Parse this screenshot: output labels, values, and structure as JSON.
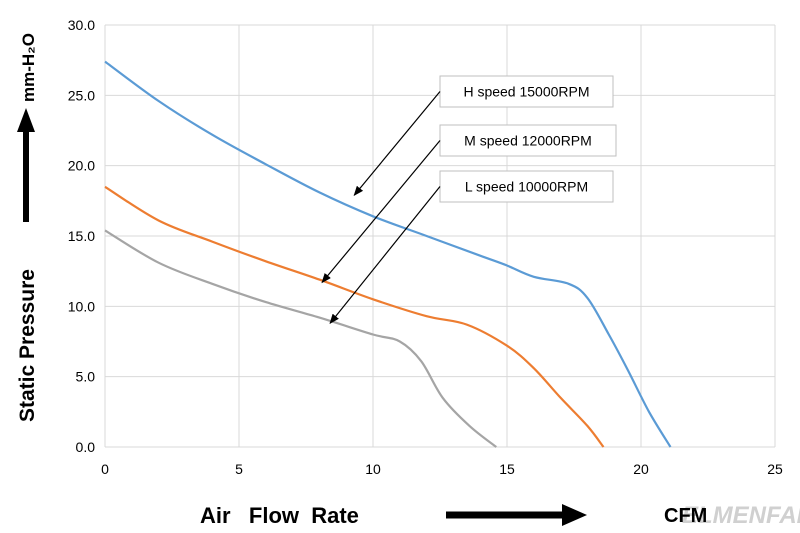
{
  "chart_data": {
    "type": "line",
    "xlabel": "Air   Flow  Rate",
    "xunit": "CFM",
    "ylabel": "Static   Pressure",
    "yunit": "mm-H₂O",
    "xlim": [
      0,
      25
    ],
    "ylim": [
      0,
      30
    ],
    "xticks": [
      0,
      5,
      10,
      15,
      20,
      25
    ],
    "yticks": [
      0.0,
      5.0,
      10.0,
      15.0,
      20.0,
      25.0,
      30.0
    ],
    "xtick_labels": [
      "0",
      "5",
      "10",
      "15",
      "20",
      "25"
    ],
    "ytick_labels": [
      "0.0",
      "5.0",
      "10.0",
      "15.0",
      "20.0",
      "25.0",
      "30.0"
    ],
    "grid": true,
    "series": [
      {
        "name": "H  speed  15000RPM",
        "color": "#5b9bd5",
        "points": [
          [
            0,
            27.4
          ],
          [
            2,
            24.6
          ],
          [
            4,
            22.2
          ],
          [
            6,
            20.1
          ],
          [
            8,
            18.1
          ],
          [
            10,
            16.4
          ],
          [
            12,
            15.0
          ],
          [
            14,
            13.6
          ],
          [
            15,
            12.9
          ],
          [
            16,
            12.1
          ],
          [
            17.3,
            11.6
          ],
          [
            18,
            10.6
          ],
          [
            18.8,
            8.0
          ],
          [
            19.5,
            5.5
          ],
          [
            20.3,
            2.5
          ],
          [
            21.1,
            0.0
          ]
        ]
      },
      {
        "name": "M  speed  12000RPM",
        "color": "#ed7d31",
        "points": [
          [
            0,
            18.5
          ],
          [
            2,
            16.1
          ],
          [
            4,
            14.6
          ],
          [
            6,
            13.2
          ],
          [
            8,
            11.9
          ],
          [
            10,
            10.5
          ],
          [
            12,
            9.3
          ],
          [
            13.5,
            8.7
          ],
          [
            15,
            7.2
          ],
          [
            16,
            5.6
          ],
          [
            17,
            3.5
          ],
          [
            18,
            1.5
          ],
          [
            18.6,
            0.0
          ]
        ]
      },
      {
        "name": "L  speed  10000RPM",
        "color": "#a5a5a5",
        "points": [
          [
            0,
            15.4
          ],
          [
            2,
            13.1
          ],
          [
            4,
            11.6
          ],
          [
            6,
            10.3
          ],
          [
            8,
            9.2
          ],
          [
            10,
            8.0
          ],
          [
            11,
            7.5
          ],
          [
            11.8,
            6.1
          ],
          [
            12.6,
            3.5
          ],
          [
            13.6,
            1.5
          ],
          [
            14.6,
            0.0
          ]
        ]
      }
    ],
    "annotations": [
      {
        "label": "H  speed  15000RPM",
        "arrow_to": [
          9.3,
          17.9
        ]
      },
      {
        "label": "M  speed  12000RPM",
        "arrow_to": [
          8.1,
          11.7
        ]
      },
      {
        "label": "L  speed  10000RPM",
        "arrow_to": [
          8.4,
          8.8
        ]
      }
    ]
  },
  "watermark": "ELMENFAN"
}
